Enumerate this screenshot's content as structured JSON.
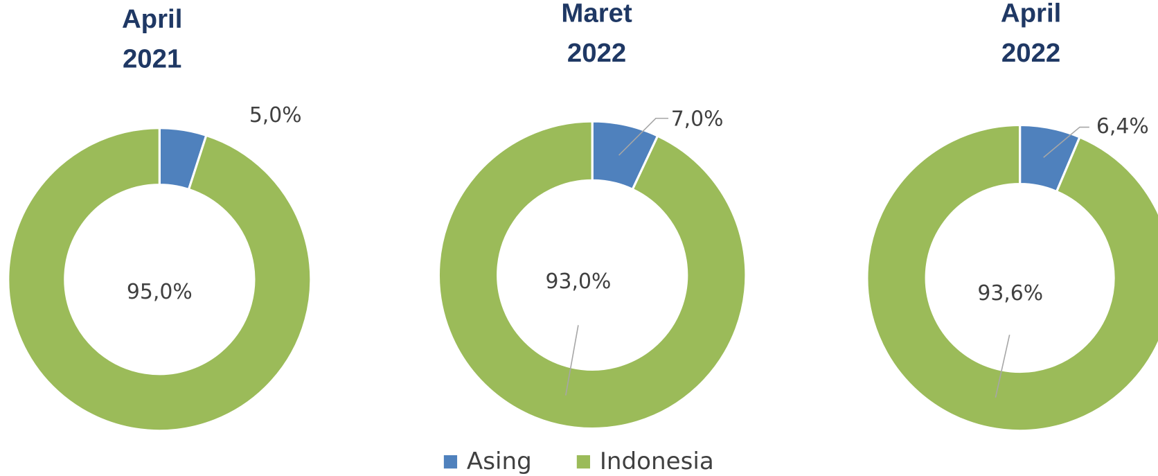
{
  "chart_data": [
    {
      "type": "pie",
      "title": "April 2021",
      "categories": [
        "Asing",
        "Indonesia"
      ],
      "values": [
        5.0,
        95.0
      ],
      "value_labels": [
        "5,0%",
        "95,0%"
      ],
      "colors": [
        "#4f81bd",
        "#9bbb59"
      ]
    },
    {
      "type": "pie",
      "title": "Maret 2022",
      "categories": [
        "Asing",
        "Indonesia"
      ],
      "values": [
        7.0,
        93.0
      ],
      "value_labels": [
        "7,0%",
        "93,0%"
      ],
      "colors": [
        "#4f81bd",
        "#9bbb59"
      ],
      "legend": "bottom"
    },
    {
      "type": "pie",
      "title": "April 2022",
      "categories": [
        "Asing",
        "Indonesia"
      ],
      "values": [
        6.4,
        93.6
      ],
      "value_labels": [
        "6,4%",
        "93,6%"
      ],
      "colors": [
        "#4f81bd",
        "#9bbb59"
      ]
    }
  ]
}
